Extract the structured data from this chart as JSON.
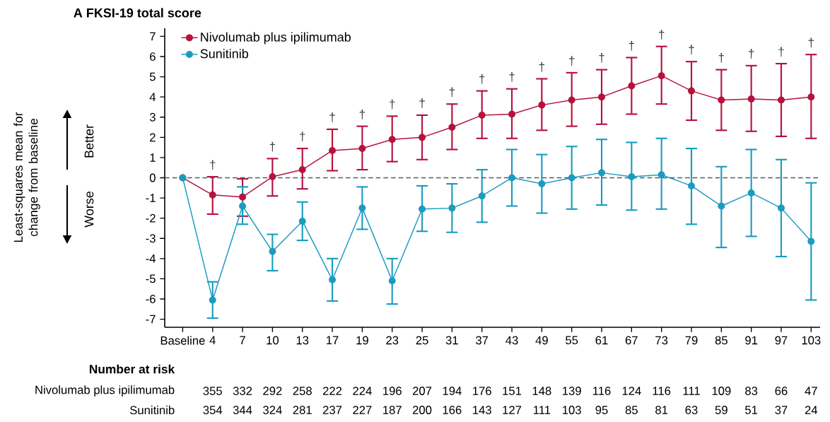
{
  "chart_data": {
    "type": "line",
    "title": "A  FKSI-19 total score",
    "categories": [
      "Baseline",
      "4",
      "7",
      "10",
      "13",
      "17",
      "19",
      "23",
      "25",
      "31",
      "37",
      "43",
      "49",
      "55",
      "61",
      "67",
      "73",
      "79",
      "85",
      "91",
      "97",
      "103"
    ],
    "series": [
      {
        "name": "Nivolumab plus ipilimumab",
        "color": "#b5123e",
        "values": [
          0,
          -0.85,
          -0.95,
          0.05,
          0.4,
          1.35,
          1.45,
          1.9,
          2.0,
          2.5,
          3.1,
          3.15,
          3.6,
          3.85,
          4.0,
          4.55,
          5.05,
          4.3,
          3.85,
          3.9,
          3.85,
          4.0
        ],
        "errors": [
          null,
          [
            -1.8,
            0.05
          ],
          [
            -1.9,
            -0.05
          ],
          [
            -0.9,
            0.95
          ],
          [
            -0.55,
            1.45
          ],
          [
            0.35,
            2.4
          ],
          [
            0.4,
            2.55
          ],
          [
            0.8,
            3.05
          ],
          [
            0.9,
            3.1
          ],
          [
            1.4,
            3.65
          ],
          [
            1.95,
            4.3
          ],
          [
            1.95,
            4.4
          ],
          [
            2.35,
            4.9
          ],
          [
            2.55,
            5.2
          ],
          [
            2.65,
            5.35
          ],
          [
            3.15,
            5.95
          ],
          [
            3.65,
            6.5
          ],
          [
            2.85,
            5.75
          ],
          [
            2.35,
            5.35
          ],
          [
            2.3,
            5.55
          ],
          [
            2.05,
            5.65
          ],
          [
            1.95,
            6.1
          ]
        ]
      },
      {
        "name": "Sunitinib",
        "color": "#1a9cc0",
        "values": [
          0,
          -6.05,
          -1.4,
          -3.65,
          -2.15,
          -5.05,
          -1.5,
          -5.1,
          -1.55,
          -1.5,
          -0.9,
          0.0,
          -0.3,
          0.0,
          0.25,
          0.05,
          0.15,
          -0.4,
          -1.4,
          -0.75,
          -1.5,
          -3.15
        ],
        "errors": [
          null,
          [
            -6.95,
            -5.15
          ],
          [
            -2.3,
            -0.45
          ],
          [
            -4.6,
            -2.8
          ],
          [
            -3.1,
            -1.2
          ],
          [
            -6.1,
            -4.0
          ],
          [
            -2.55,
            -0.45
          ],
          [
            -6.25,
            -4.0
          ],
          [
            -2.65,
            -0.4
          ],
          [
            -2.7,
            -0.3
          ],
          [
            -2.2,
            0.4
          ],
          [
            -1.4,
            1.4
          ],
          [
            -1.75,
            1.15
          ],
          [
            -1.55,
            1.55
          ],
          [
            -1.35,
            1.9
          ],
          [
            -1.6,
            1.75
          ],
          [
            -1.55,
            1.95
          ],
          [
            -2.3,
            1.45
          ],
          [
            -3.45,
            0.55
          ],
          [
            -2.9,
            1.4
          ],
          [
            -3.9,
            0.9
          ],
          [
            -6.05,
            -0.25
          ]
        ]
      }
    ],
    "ylim": [
      -7.4,
      7.4
    ],
    "yticks": [
      -7,
      -6,
      -5,
      -4,
      -3,
      -2,
      -1,
      0,
      1,
      2,
      3,
      4,
      5,
      6,
      7
    ],
    "ref_lines": [
      {
        "axis": "y",
        "value": 0,
        "color": "#4d5b66",
        "line_style": "dashed"
      }
    ],
    "marker": "circle",
    "line_style": "solid",
    "legend": "top left",
    "grid": false,
    "annotations": [
      {
        "text": "†",
        "x": "4",
        "y": 0.05
      },
      {
        "text": "†",
        "x": "10",
        "y": 0.95
      },
      {
        "text": "†",
        "x": "13",
        "y": 1.45
      },
      {
        "text": "†",
        "x": "17",
        "y": 2.4
      },
      {
        "text": "†",
        "x": "19",
        "y": 2.55
      },
      {
        "text": "†",
        "x": "23",
        "y": 3.05
      },
      {
        "text": "†",
        "x": "25",
        "y": 3.1
      },
      {
        "text": "†",
        "x": "31",
        "y": 3.65
      },
      {
        "text": "†",
        "x": "37",
        "y": 4.3
      },
      {
        "text": "†",
        "x": "43",
        "y": 4.4
      },
      {
        "text": "†",
        "x": "49",
        "y": 4.9
      },
      {
        "text": "†",
        "x": "55",
        "y": 5.2
      },
      {
        "text": "†",
        "x": "61",
        "y": 5.35
      },
      {
        "text": "†",
        "x": "67",
        "y": 5.95
      },
      {
        "text": "†",
        "x": "73",
        "y": 6.5
      },
      {
        "text": "†",
        "x": "79",
        "y": 5.75
      },
      {
        "text": "†",
        "x": "85",
        "y": 5.35
      },
      {
        "text": "†",
        "x": "91",
        "y": 5.55
      },
      {
        "text": "†",
        "x": "97",
        "y": 5.65
      },
      {
        "text": "†",
        "x": "103",
        "y": 6.1
      },
      "Least-squares mean for change from baseline",
      "Better",
      "Worse",
      "Number at risk",
      "Nivolumab plus ipilimumab",
      "355",
      "332",
      "292",
      "258",
      "222",
      "224",
      "196",
      "207",
      "194",
      "176",
      "151",
      "148",
      "139",
      "116",
      "124",
      "116",
      "111",
      "109",
      "83",
      "66",
      "47",
      "Sunitinib",
      "354",
      "344",
      "324",
      "281",
      "237",
      "227",
      "187",
      "200",
      "166",
      "143",
      "127",
      "111",
      "103",
      "95",
      "85",
      "81",
      "63",
      "59",
      "51",
      "37",
      "24"
    ]
  }
}
